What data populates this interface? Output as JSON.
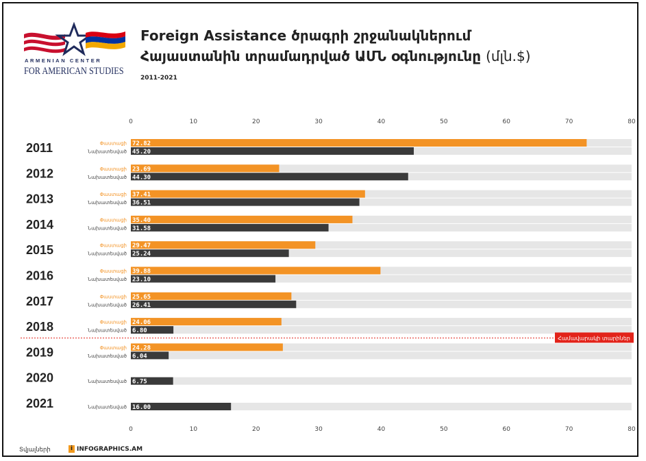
{
  "header": {
    "title_line1": "Foreign Assistance ծրագրի շրջանակներում",
    "title_line2": "Հայաստանին տրամադրված ԱՄՆ օգնությունը",
    "title_unit": "(մլն.$)",
    "subtitle": "2011-2021"
  },
  "logo": {
    "line1": "ARMENIAN CENTER",
    "line2": "FOR AMERICAN STUDIES"
  },
  "footer": {
    "source_label": "Տվյալների",
    "brand": "INFOGRAPHICS.AM"
  },
  "colors": {
    "obligated": "#f39325",
    "disbursed": "#3a3a3a",
    "track": "#e6e6e6",
    "pandemic": "#e2231a"
  },
  "chart_data": {
    "type": "bar",
    "orientation": "horizontal",
    "title": "Foreign Assistance ծրագրի շրջանակներում Հայաստանին տրամադրված ԱՄՆ օգնությունը (մլն.$)",
    "subtitle": "2011-2021",
    "xlim": [
      0,
      80
    ],
    "xticks": [
      0,
      10,
      20,
      30,
      40,
      50,
      60,
      70,
      80
    ],
    "series_labels": {
      "obligated": "Փաստացի",
      "disbursed": "Նախատեսված"
    },
    "categories": [
      "2011",
      "2012",
      "2013",
      "2014",
      "2015",
      "2016",
      "2017",
      "2018",
      "2019",
      "2020",
      "2021"
    ],
    "series": [
      {
        "name": "Փաստացի",
        "values": [
          72.82,
          23.69,
          37.41,
          35.4,
          29.47,
          39.88,
          25.65,
          24.06,
          24.28,
          null,
          null
        ],
        "labels": [
          "72.82",
          "23.69",
          "37.41",
          "35.40",
          "29.47",
          "39.88",
          "25.65",
          "24.06",
          "24.28",
          "",
          ""
        ]
      },
      {
        "name": "Նախատեսված",
        "values": [
          45.2,
          44.3,
          36.51,
          31.58,
          25.24,
          23.1,
          26.41,
          6.8,
          6.04,
          6.75,
          16.0
        ],
        "labels": [
          "45.20",
          "44.30",
          "36.51",
          "31.58",
          "25.24",
          "23.10",
          "26.41",
          "6.80",
          "6.04",
          "6.75",
          "16.00"
        ]
      }
    ],
    "annotation": {
      "label": "Համավարակի տարիներ",
      "between": [
        "2018",
        "2019"
      ]
    },
    "grid": false
  }
}
